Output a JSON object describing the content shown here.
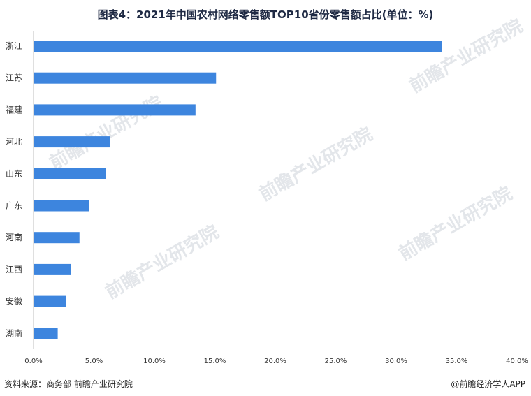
{
  "title": "图表4：2021年中国农村网络零售额TOP10省份零售额占比(单位：%)",
  "footer": {
    "source": "资料来源：商务部 前瞻产业研究院",
    "brand": "@前瞻经济学人APP"
  },
  "watermark": "前瞻产业研究院",
  "colors": {
    "bar": "#3d85de",
    "axis": "#bfbfbf",
    "text": "#333333"
  },
  "chart_data": {
    "type": "bar",
    "orientation": "horizontal",
    "title": "图表4：2021年中国农村网络零售额TOP10省份零售额占比(单位：%)",
    "categories": [
      "浙江",
      "江苏",
      "福建",
      "河北",
      "山东",
      "广东",
      "河南",
      "江西",
      "安徽",
      "湖南"
    ],
    "values": [
      33.8,
      15.1,
      13.4,
      6.3,
      6.0,
      4.6,
      3.8,
      3.1,
      2.7,
      2.0
    ],
    "xlim": [
      0,
      40
    ],
    "xticks": [
      "0.0%",
      "5.0%",
      "10.0%",
      "15.0%",
      "20.0%",
      "25.0%",
      "30.0%",
      "35.0%",
      "40.0%"
    ],
    "grid": false,
    "legend": "none"
  }
}
